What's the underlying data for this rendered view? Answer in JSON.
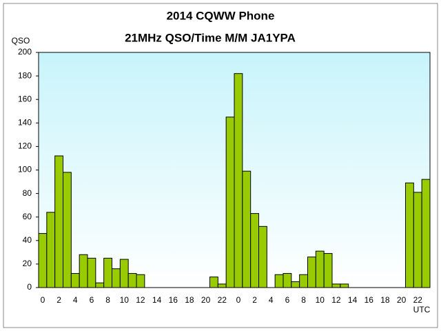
{
  "chart_data": {
    "type": "bar",
    "title": "2014  CQWW Phone",
    "subtitle": "21MHz QSO/Time  M/M JA1YPA",
    "y_label": "QSO",
    "x_label": "UTC",
    "categories": [
      "0",
      null,
      "2",
      null,
      "4",
      null,
      "6",
      null,
      "8",
      null,
      "10",
      null,
      "12",
      null,
      "14",
      null,
      "16",
      null,
      "18",
      null,
      "20",
      null,
      "22",
      null,
      "0",
      null,
      "2",
      null,
      "4",
      null,
      "6",
      null,
      "8",
      null,
      "10",
      null,
      "12",
      null,
      "14",
      null,
      "16",
      null,
      "18",
      null,
      "20",
      null,
      "22",
      null
    ],
    "values": [
      46,
      64,
      112,
      98,
      12,
      28,
      25,
      4,
      25,
      16,
      24,
      12,
      11,
      0,
      0,
      0,
      0,
      0,
      0,
      0,
      0,
      9,
      3,
      145,
      182,
      99,
      63,
      52,
      0,
      11,
      12,
      5,
      11,
      26,
      31,
      29,
      3,
      3,
      0,
      0,
      0,
      0,
      0,
      0,
      0,
      89,
      81,
      92
    ],
    "color": "#99cc00",
    "ylim": [
      0,
      200
    ],
    "yticks": [
      0,
      20,
      40,
      60,
      80,
      100,
      120,
      140,
      160,
      180,
      200
    ],
    "grid": false
  }
}
